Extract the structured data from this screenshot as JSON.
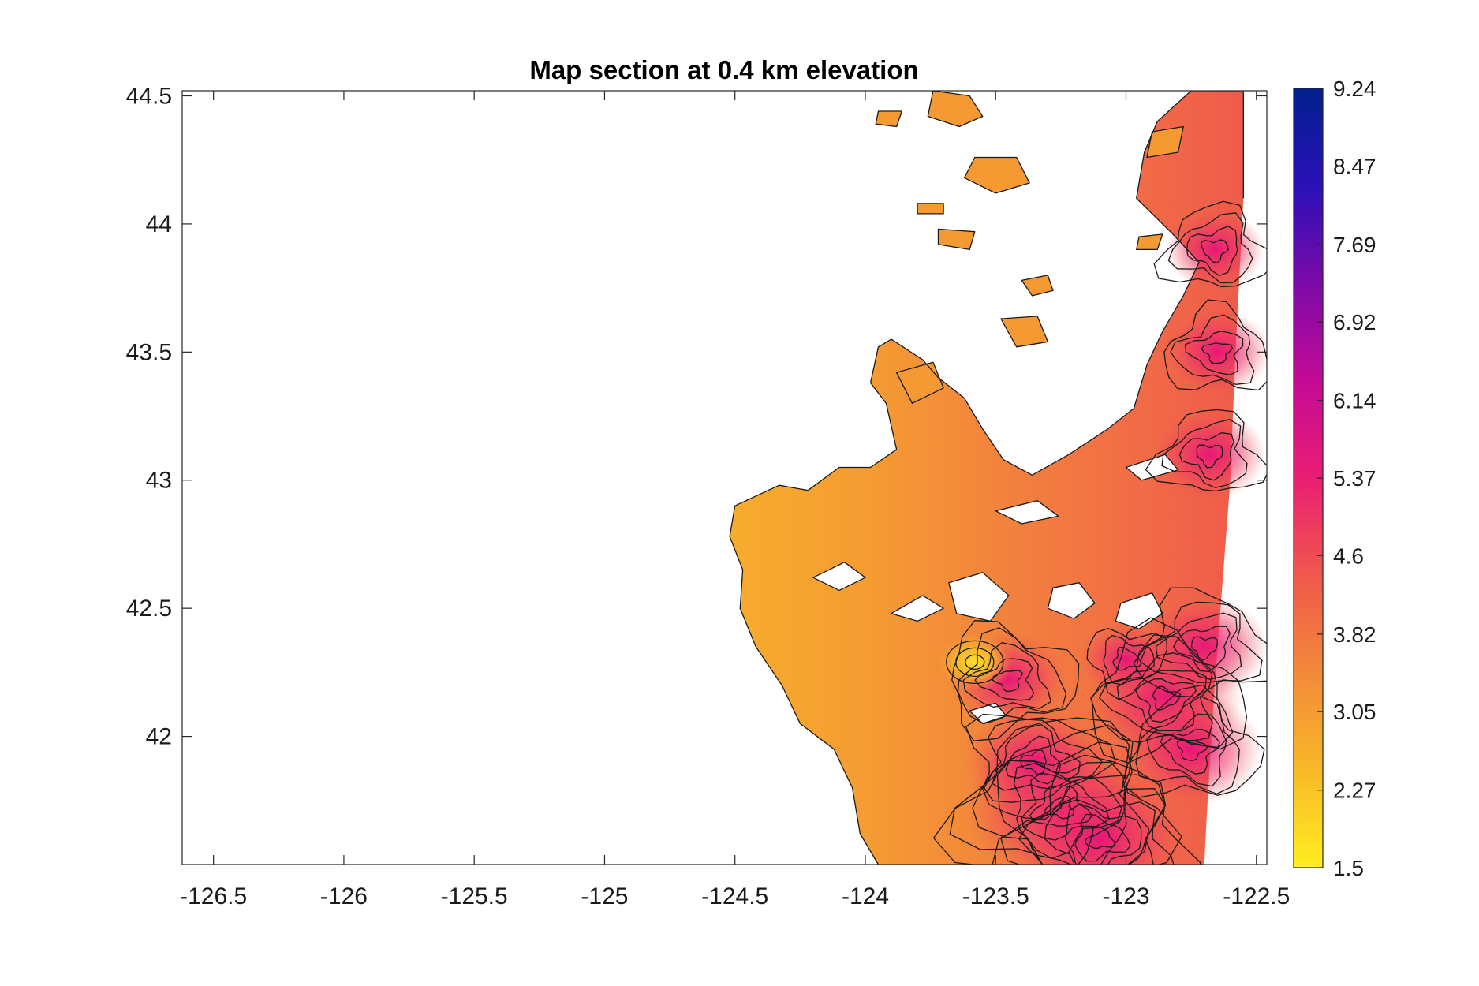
{
  "chart_data": {
    "type": "heatmap",
    "title": "Map section at 0.4 km elevation",
    "xlabel": "",
    "ylabel": "",
    "xlim": [
      -126.62,
      -122.46
    ],
    "ylim": [
      41.5,
      44.52
    ],
    "x_ticks": [
      -126.5,
      -126,
      -125.5,
      -125,
      -124.5,
      -124,
      -123.5,
      -123,
      -122.5
    ],
    "x_tick_labels": [
      "-126.5",
      "-126",
      "-125.5",
      "-125",
      "-124.5",
      "-124",
      "-123.5",
      "-123",
      "-122.5"
    ],
    "y_ticks": [
      42,
      42.5,
      43,
      43.5,
      44,
      44.5
    ],
    "y_tick_labels": [
      "42",
      "42.5",
      "43",
      "43.5",
      "44",
      "44.5"
    ],
    "colorbar": {
      "range": [
        1.5,
        9.24
      ],
      "ticks": [
        1.5,
        2.27,
        3.05,
        3.82,
        4.6,
        5.37,
        6.14,
        6.92,
        7.69,
        8.47,
        9.24
      ],
      "tick_labels": [
        "1.5",
        "2.27",
        "3.05",
        "3.82",
        "4.6",
        "5.37",
        "6.14",
        "6.92",
        "7.69",
        "8.47",
        "9.24"
      ],
      "colors": [
        "#ffee20",
        "#f8b828",
        "#f3893a",
        "#f0584c",
        "#ea1e73",
        "#c40a96",
        "#7c0aa8",
        "#2a10b8",
        "#00208c"
      ]
    },
    "grid": false,
    "field": {
      "description_units": "values in colorbar units over lon/lat",
      "eastern_edge": [
        [
          -122.55,
          44.52
        ],
        [
          -122.55,
          44.1
        ],
        [
          -122.58,
          43.5
        ],
        [
          -122.6,
          43.0
        ],
        [
          -122.63,
          42.6
        ],
        [
          -122.66,
          42.2
        ],
        [
          -122.69,
          41.7
        ],
        [
          -122.7,
          41.5
        ]
      ],
      "land_outline": [
        [
          -123.95,
          41.5
        ],
        [
          -124.02,
          41.62
        ],
        [
          -124.05,
          41.8
        ],
        [
          -124.12,
          41.95
        ],
        [
          -124.25,
          42.05
        ],
        [
          -124.32,
          42.2
        ],
        [
          -124.42,
          42.35
        ],
        [
          -124.48,
          42.5
        ],
        [
          -124.47,
          42.65
        ],
        [
          -124.52,
          42.78
        ],
        [
          -124.5,
          42.9
        ],
        [
          -124.33,
          42.98
        ],
        [
          -124.22,
          42.96
        ],
        [
          -124.1,
          43.05
        ],
        [
          -123.98,
          43.05
        ],
        [
          -123.88,
          43.12
        ],
        [
          -123.92,
          43.3
        ],
        [
          -123.98,
          43.38
        ],
        [
          -123.95,
          43.52
        ],
        [
          -123.9,
          43.55
        ],
        [
          -123.78,
          43.47
        ],
        [
          -123.72,
          43.4
        ],
        [
          -123.62,
          43.32
        ],
        [
          -123.55,
          43.2
        ],
        [
          -123.47,
          43.08
        ],
        [
          -123.36,
          43.02
        ],
        [
          -123.22,
          43.1
        ],
        [
          -123.07,
          43.2
        ],
        [
          -122.97,
          43.28
        ],
        [
          -122.92,
          43.45
        ],
        [
          -122.86,
          43.58
        ],
        [
          -122.78,
          43.72
        ],
        [
          -122.72,
          43.85
        ],
        [
          -122.82,
          43.96
        ],
        [
          -122.96,
          44.1
        ],
        [
          -122.93,
          44.28
        ],
        [
          -122.88,
          44.4
        ],
        [
          -122.75,
          44.52
        ],
        [
          -122.55,
          44.52
        ],
        [
          -122.55,
          44.1
        ],
        [
          -122.58,
          43.5
        ],
        [
          -122.6,
          43.0
        ],
        [
          -122.63,
          42.6
        ],
        [
          -122.66,
          42.2
        ],
        [
          -122.69,
          41.7
        ],
        [
          -122.7,
          41.5
        ]
      ],
      "north_islands": [
        [
          [
            -123.74,
            44.52
          ],
          [
            -123.6,
            44.5
          ],
          [
            -123.55,
            44.42
          ],
          [
            -123.64,
            44.38
          ],
          [
            -123.76,
            44.42
          ]
        ],
        [
          [
            -123.58,
            44.26
          ],
          [
            -123.42,
            44.26
          ],
          [
            -123.37,
            44.16
          ],
          [
            -123.5,
            44.12
          ],
          [
            -123.62,
            44.18
          ]
        ],
        [
          [
            -123.72,
            43.98
          ],
          [
            -123.58,
            43.97
          ],
          [
            -123.6,
            43.9
          ],
          [
            -123.72,
            43.92
          ]
        ],
        [
          [
            -123.48,
            43.63
          ],
          [
            -123.34,
            43.64
          ],
          [
            -123.3,
            43.54
          ],
          [
            -123.42,
            43.52
          ]
        ],
        [
          [
            -123.88,
            43.42
          ],
          [
            -123.74,
            43.46
          ],
          [
            -123.7,
            43.36
          ],
          [
            -123.82,
            43.3
          ]
        ],
        [
          [
            -123.4,
            43.78
          ],
          [
            -123.3,
            43.8
          ],
          [
            -123.28,
            43.74
          ],
          [
            -123.36,
            43.72
          ]
        ],
        [
          [
            -123.95,
            44.44
          ],
          [
            -123.86,
            44.44
          ],
          [
            -123.88,
            44.38
          ],
          [
            -123.96,
            44.39
          ]
        ],
        [
          [
            -123.8,
            44.08
          ],
          [
            -123.7,
            44.08
          ],
          [
            -123.7,
            44.04
          ],
          [
            -123.8,
            44.04
          ]
        ],
        [
          [
            -122.9,
            44.36
          ],
          [
            -122.78,
            44.38
          ],
          [
            -122.8,
            44.28
          ],
          [
            -122.92,
            44.26
          ]
        ],
        [
          [
            -122.95,
            43.95
          ],
          [
            -122.86,
            43.96
          ],
          [
            -122.88,
            43.9
          ],
          [
            -122.96,
            43.9
          ]
        ]
      ],
      "inner_voids": [
        [
          [
            -123.68,
            42.6
          ],
          [
            -123.55,
            42.64
          ],
          [
            -123.45,
            42.55
          ],
          [
            -123.52,
            42.45
          ],
          [
            -123.65,
            42.48
          ]
        ],
        [
          [
            -123.28,
            42.58
          ],
          [
            -123.18,
            42.6
          ],
          [
            -123.12,
            42.52
          ],
          [
            -123.2,
            42.46
          ],
          [
            -123.3,
            42.5
          ]
        ],
        [
          [
            -123.02,
            42.52
          ],
          [
            -122.9,
            42.56
          ],
          [
            -122.86,
            42.48
          ],
          [
            -122.95,
            42.42
          ],
          [
            -123.04,
            42.45
          ]
        ],
        [
          [
            -123.9,
            42.48
          ],
          [
            -123.78,
            42.55
          ],
          [
            -123.7,
            42.5
          ],
          [
            -123.8,
            42.45
          ]
        ],
        [
          [
            -124.2,
            42.62
          ],
          [
            -124.08,
            42.68
          ],
          [
            -124.0,
            42.62
          ],
          [
            -124.1,
            42.57
          ]
        ],
        [
          [
            -123.5,
            42.88
          ],
          [
            -123.34,
            42.92
          ],
          [
            -123.26,
            42.86
          ],
          [
            -123.4,
            42.83
          ]
        ],
        [
          [
            -123.0,
            43.05
          ],
          [
            -122.85,
            43.1
          ],
          [
            -122.8,
            43.04
          ],
          [
            -122.94,
            43.0
          ]
        ],
        [
          [
            -123.6,
            42.1
          ],
          [
            -123.5,
            42.13
          ],
          [
            -123.46,
            42.08
          ],
          [
            -123.55,
            42.05
          ]
        ]
      ],
      "hotspots": [
        {
          "lon": -123.25,
          "lat": 41.72,
          "value": 6.3
        },
        {
          "lon": -123.1,
          "lat": 41.6,
          "value": 6.1
        },
        {
          "lon": -122.85,
          "lat": 42.15,
          "value": 5.8
        },
        {
          "lon": -122.75,
          "lat": 41.95,
          "value": 5.6
        },
        {
          "lon": -122.7,
          "lat": 42.35,
          "value": 5.4
        },
        {
          "lon": -122.68,
          "lat": 43.1,
          "value": 5.2
        },
        {
          "lon": -122.65,
          "lat": 43.5,
          "value": 5.1
        },
        {
          "lon": -122.66,
          "lat": 43.9,
          "value": 5.0
        },
        {
          "lon": -123.45,
          "lat": 42.22,
          "value": 5.3
        },
        {
          "lon": -123.0,
          "lat": 42.3,
          "value": 4.9
        },
        {
          "lon": -123.35,
          "lat": 41.9,
          "value": 5.6
        }
      ],
      "low_spot": {
        "lon": -123.58,
        "lat": 42.29,
        "value": 2.3
      }
    }
  }
}
